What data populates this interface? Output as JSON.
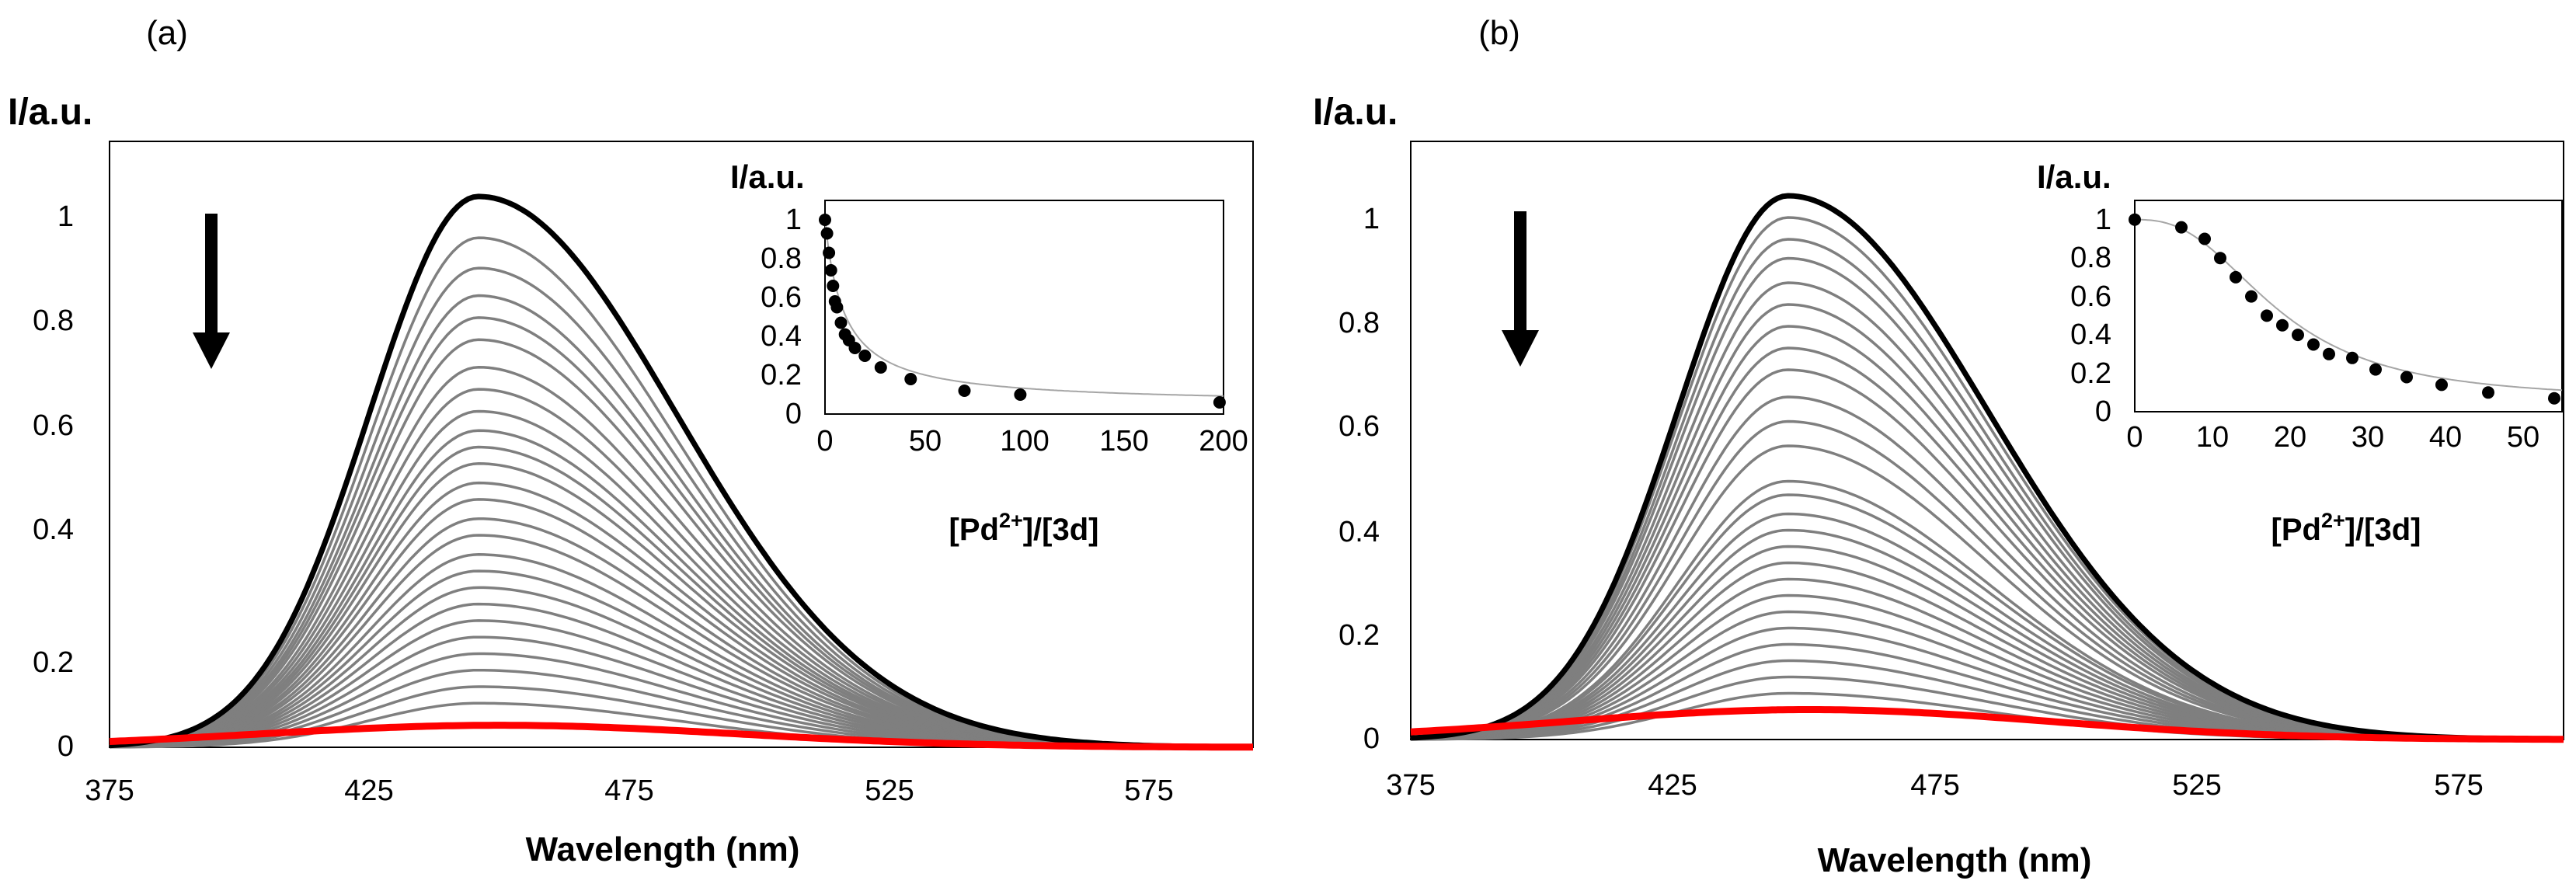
{
  "colors": {
    "first": "#000000",
    "intermediate": "#7f7f7f",
    "final": "#ff0000",
    "fit": "#a6a6a6",
    "points": "#000000"
  },
  "chart_data": [
    {
      "type": "line",
      "panel_label": "(a)",
      "xlabel": "Wavelength (nm)",
      "ylabel": "I/a.u.",
      "xlim": [
        375,
        595
      ],
      "ylim": [
        0,
        1.1
      ],
      "xticks": [
        "375",
        "425",
        "475",
        "525",
        "575"
      ],
      "yticks": [
        "0",
        "0.2",
        "0.4",
        "0.6",
        "0.8",
        "1"
      ],
      "peak_wavelength": 446,
      "arrow": "down",
      "series_peak_intensities": [
        1.0,
        0.925,
        0.87,
        0.82,
        0.78,
        0.74,
        0.69,
        0.65,
        0.61,
        0.575,
        0.545,
        0.515,
        0.48,
        0.45,
        0.415,
        0.385,
        0.35,
        0.32,
        0.29,
        0.26,
        0.23,
        0.2,
        0.17,
        0.14,
        0.11,
        0.08,
        0.04
      ],
      "inset": {
        "type": "scatter",
        "ylabel": "I/a.u.",
        "xlabel": "[Pd2+]/[3d]",
        "xlim": [
          0,
          200
        ],
        "ylim": [
          0,
          1.1
        ],
        "xticks": [
          "0",
          "50",
          "100",
          "150",
          "200"
        ],
        "yticks": [
          "0",
          "0.2",
          "0.4",
          "0.6",
          "0.8",
          "1"
        ],
        "x": [
          0,
          1,
          2,
          3,
          4,
          5,
          6,
          8,
          10,
          12,
          15,
          20,
          28,
          43,
          70,
          98,
          198
        ],
        "y": [
          1.0,
          0.93,
          0.83,
          0.74,
          0.66,
          0.58,
          0.55,
          0.47,
          0.41,
          0.38,
          0.34,
          0.3,
          0.24,
          0.18,
          0.12,
          0.1,
          0.06
        ]
      }
    },
    {
      "type": "line",
      "panel_label": "(b)",
      "xlabel": "Wavelength (nm)",
      "ylabel": "I/a.u.",
      "xlim": [
        375,
        595
      ],
      "ylim": [
        0,
        1.1
      ],
      "xticks": [
        "375",
        "425",
        "475",
        "525",
        "575"
      ],
      "yticks": [
        "0",
        "0.2",
        "0.4",
        "0.6",
        "0.8",
        "1"
      ],
      "peak_wavelength": 447,
      "arrow": "down",
      "series_peak_intensities": [
        1.0,
        0.96,
        0.92,
        0.885,
        0.84,
        0.8,
        0.76,
        0.72,
        0.68,
        0.63,
        0.585,
        0.54,
        0.475,
        0.45,
        0.415,
        0.385,
        0.355,
        0.325,
        0.295,
        0.265,
        0.235,
        0.205,
        0.175,
        0.145,
        0.115,
        0.085,
        0.055
      ],
      "inset": {
        "type": "scatter",
        "ylabel": "I/a.u.",
        "xlabel": "[Pd2+]/[3d]",
        "xlim": [
          0,
          55
        ],
        "ylim": [
          0,
          1.1
        ],
        "xticks": [
          "0",
          "10",
          "20",
          "30",
          "40",
          "50"
        ],
        "yticks": [
          "0",
          "0.2",
          "0.4",
          "0.6",
          "0.8",
          "1"
        ],
        "x": [
          0,
          6,
          9,
          11,
          13,
          15,
          17,
          19,
          21,
          23,
          25,
          28,
          31,
          35,
          39.5,
          45.5,
          54
        ],
        "y": [
          1.0,
          0.96,
          0.9,
          0.8,
          0.7,
          0.6,
          0.5,
          0.45,
          0.4,
          0.35,
          0.3,
          0.28,
          0.22,
          0.18,
          0.14,
          0.1,
          0.07
        ]
      }
    }
  ]
}
